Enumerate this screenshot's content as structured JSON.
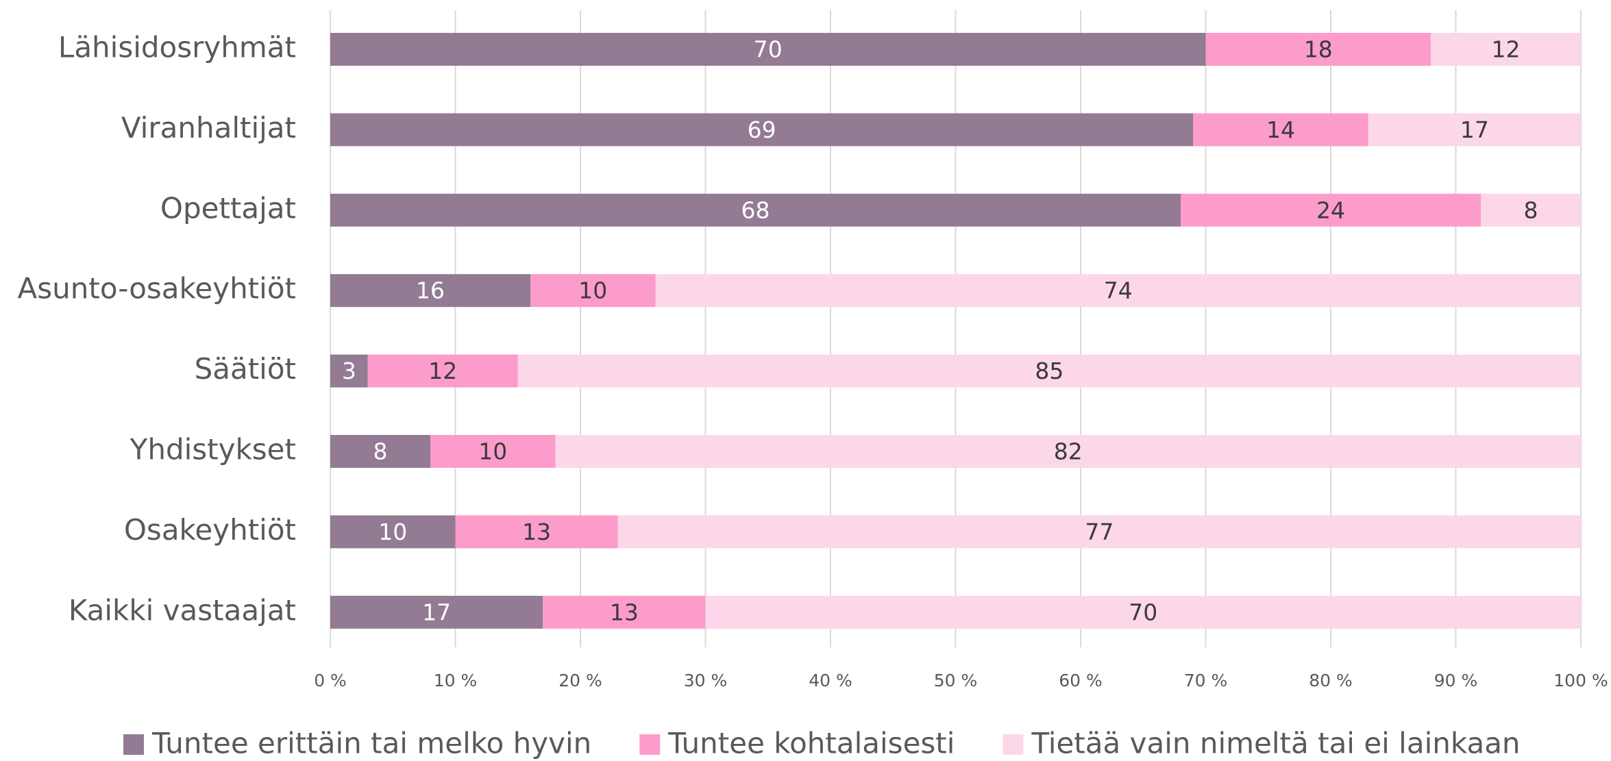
{
  "chart_data": {
    "type": "stacked_bar_horizontal",
    "categories": [
      "Lähisidosryhmät",
      "Viranhaltijat",
      "Opettajat",
      "Asunto-osakeyhtiöt",
      "Säätiöt",
      "Yhdistykset",
      "Osakeyhtiöt",
      "Kaikki vastaajat"
    ],
    "series": [
      {
        "name": "Tuntee erittäin tai melko hyvin",
        "color": "#937b93",
        "values": [
          70,
          69,
          68,
          16,
          3,
          8,
          10,
          17
        ]
      },
      {
        "name": "Tuntee kohtalaisesti",
        "color": "#fc9ccb",
        "values": [
          18,
          14,
          24,
          10,
          12,
          10,
          13,
          13
        ]
      },
      {
        "name": "Tietää vain nimeltä tai ei lainkaan",
        "color": "#fcd7e9",
        "values": [
          12,
          17,
          8,
          74,
          85,
          82,
          77,
          70
        ]
      }
    ],
    "xlim": [
      0,
      100
    ],
    "xticks": [
      {
        "value": 0,
        "label": "0 %"
      },
      {
        "value": 10,
        "label": "10 %"
      },
      {
        "value": 20,
        "label": "20 %"
      },
      {
        "value": 30,
        "label": "30 %"
      },
      {
        "value": 40,
        "label": "40 %"
      },
      {
        "value": 50,
        "label": "50 %"
      },
      {
        "value": 60,
        "label": "60 %"
      },
      {
        "value": 70,
        "label": "70 %"
      },
      {
        "value": 80,
        "label": "80 %"
      },
      {
        "value": 90,
        "label": "90 %"
      },
      {
        "value": 100,
        "label": "100 %"
      }
    ],
    "grid": true,
    "legend": "bottom"
  }
}
